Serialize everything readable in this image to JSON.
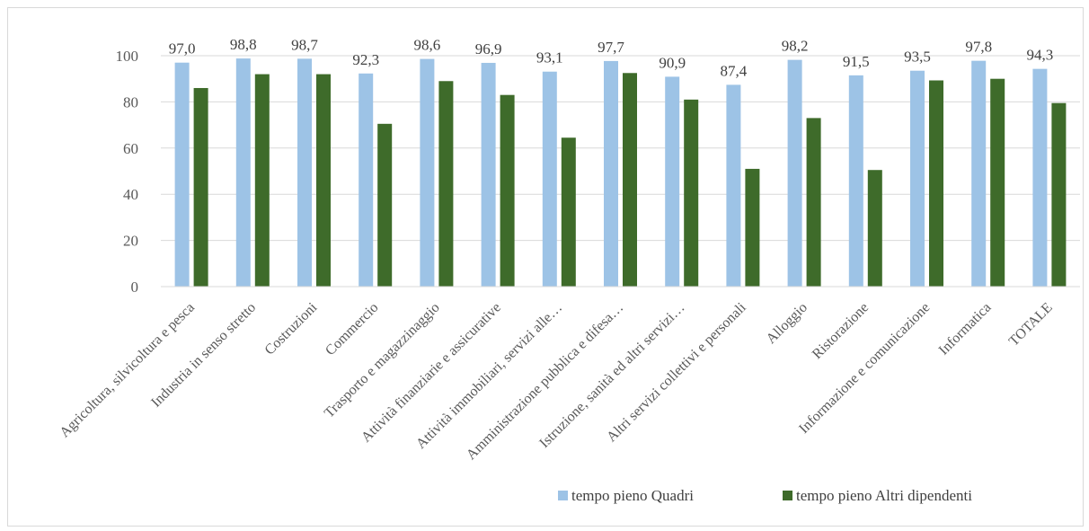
{
  "chart_data": {
    "type": "bar",
    "categories": [
      "Agricoltura, silvicoltura e pesca",
      "Industria in senso stretto",
      "Costruzioni",
      "Commercio",
      "Trasporto e magazzinaggio",
      "Attività finanziarie e assicurative",
      "Attività immobiliari, servizi alle…",
      "Amministrazione pubblica e difesa…",
      "Istruzione, sanità ed altri servizi…",
      "Altri servizi collettivi e personali",
      "Alloggio",
      "Ristorazione",
      "Informazione e comunicazione",
      "Informatica",
      "TOTALE"
    ],
    "series": [
      {
        "name": "tempo pieno  Quadri",
        "color": "#9dc3e6",
        "values": [
          97.0,
          98.8,
          98.7,
          92.3,
          98.6,
          96.9,
          93.1,
          97.7,
          90.9,
          87.4,
          98.2,
          91.5,
          93.5,
          97.8,
          94.3
        ],
        "data_labels": [
          "97,0",
          "98,8",
          "98,7",
          "92,3",
          "98,6",
          "96,9",
          "93,1",
          "97,7",
          "90,9",
          "87,4",
          "98,2",
          "91,5",
          "93,5",
          "97,8",
          "94,3"
        ]
      },
      {
        "name": "tempo pieno  Altri dipendenti",
        "color": "#3e6b2a",
        "values": [
          86,
          92,
          92,
          70.5,
          89,
          83,
          64.5,
          92.5,
          81,
          51,
          73,
          50.5,
          89.3,
          90,
          79.5
        ]
      }
    ],
    "yticks": [
      "0",
      "20",
      "40",
      "60",
      "80",
      "100"
    ],
    "ylim": [
      0,
      100
    ],
    "grid": true,
    "legend_position": "bottom-right"
  }
}
